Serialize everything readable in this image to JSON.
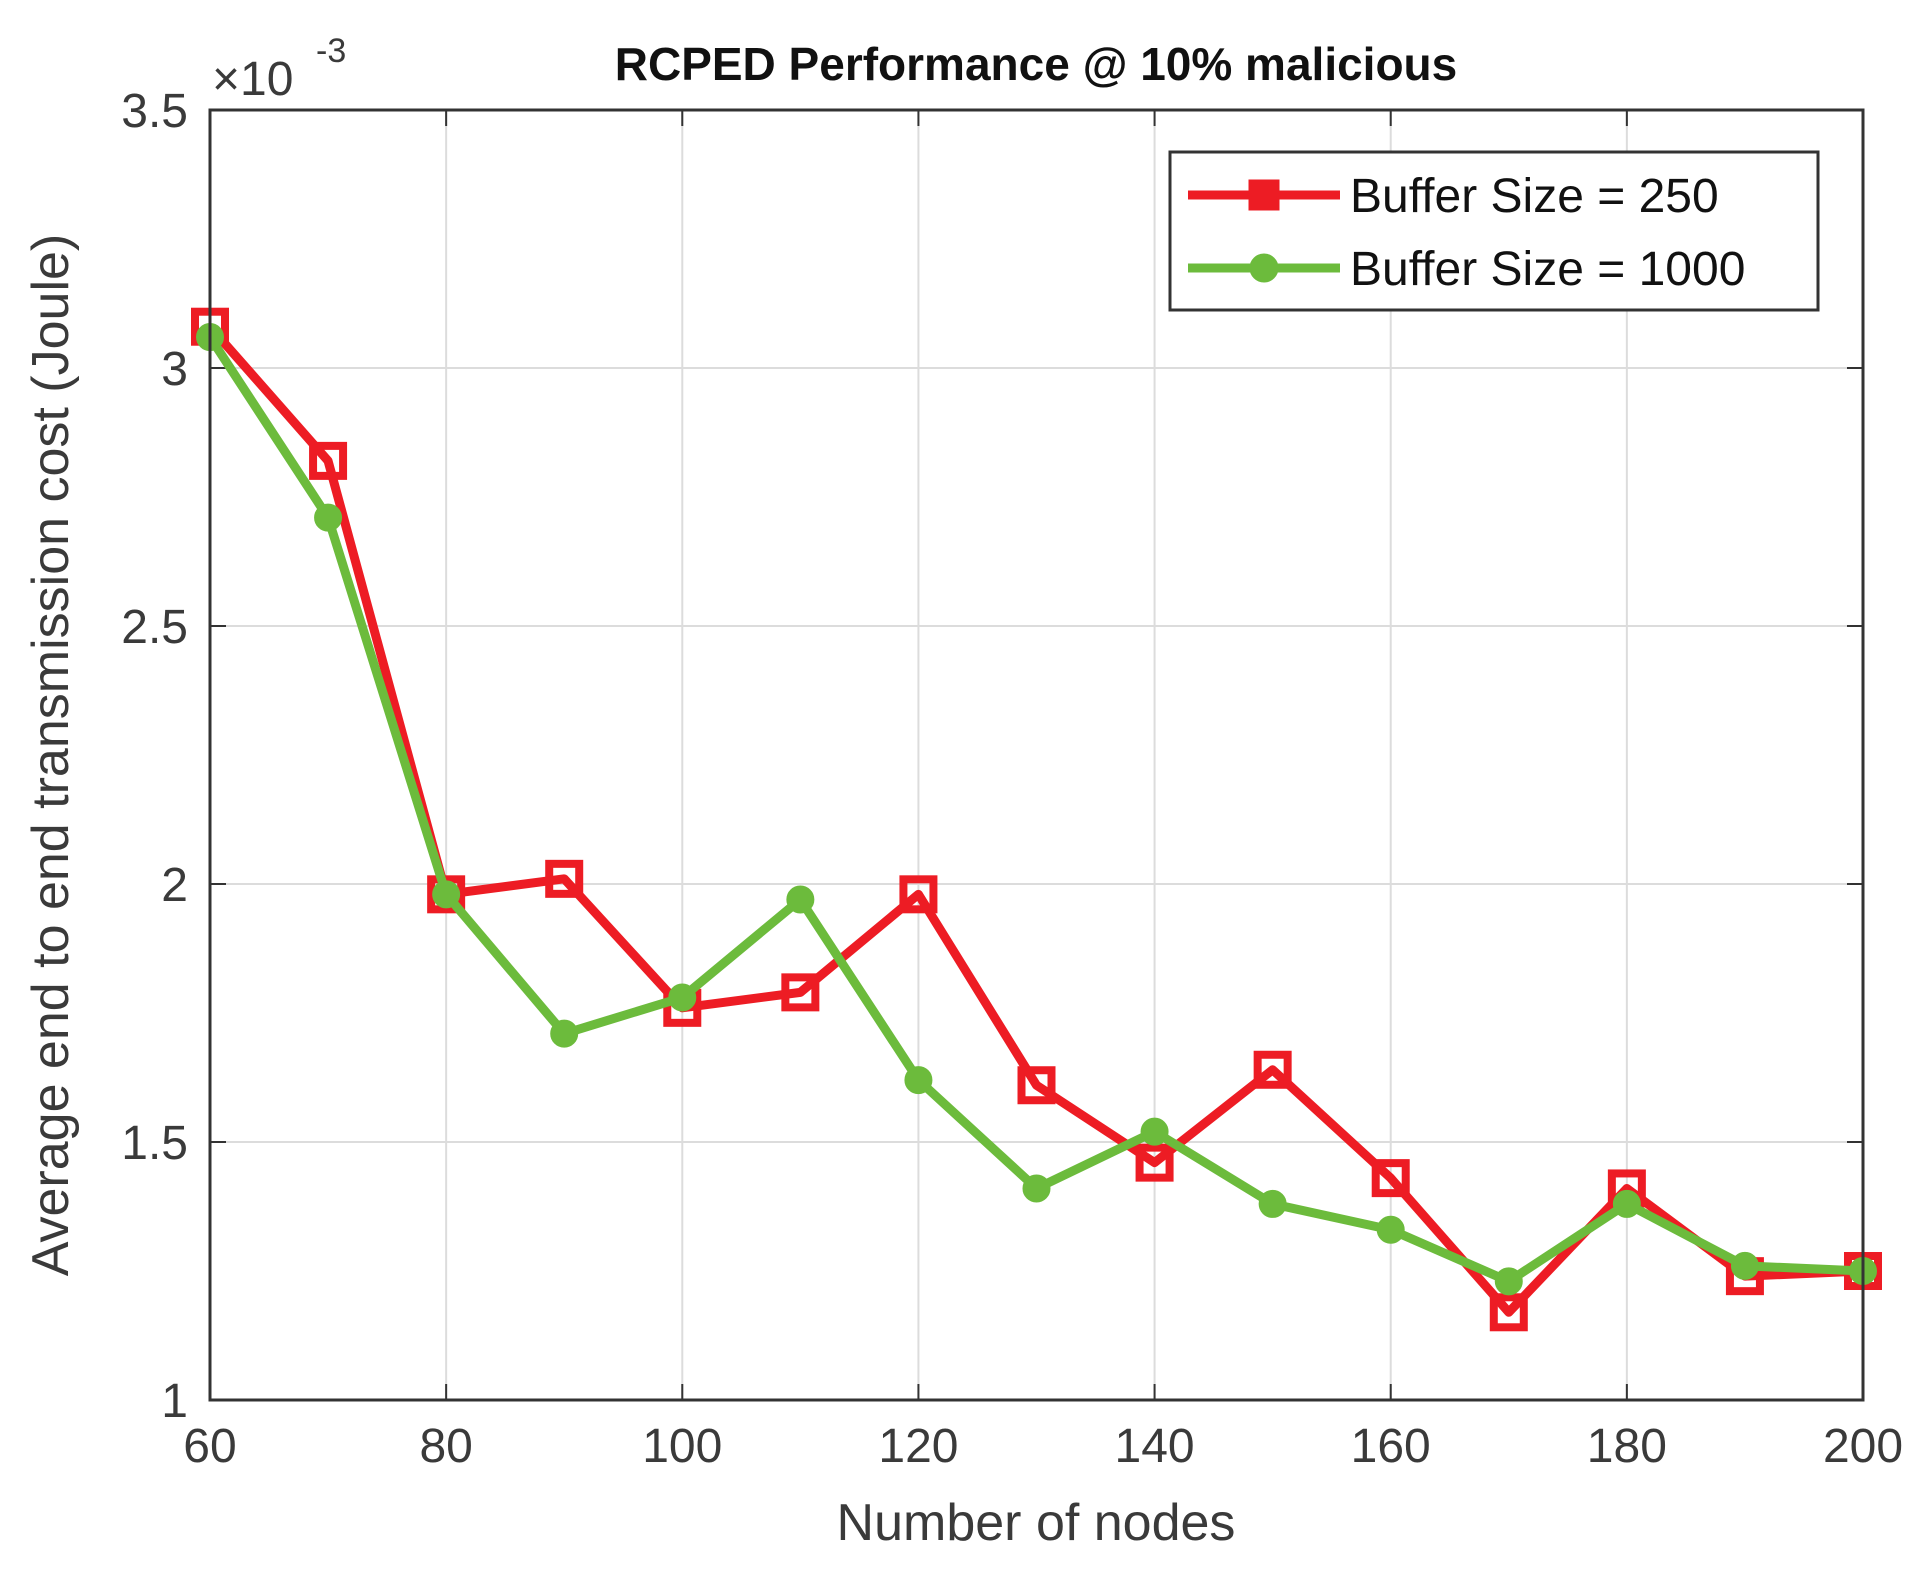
{
  "chart_data": {
    "type": "line",
    "title": "RCPED Performance @ 10% malicious",
    "xlabel": "Number of nodes",
    "ylabel": "Average end to end transmission cost (Joule)",
    "y_multiplier": {
      "base": "×10",
      "exponent": "-3"
    },
    "xlim": [
      60,
      200
    ],
    "ylim": [
      1,
      3.5
    ],
    "x_ticks": [
      60,
      80,
      100,
      120,
      140,
      160,
      180,
      200
    ],
    "y_ticks": [
      1,
      1.5,
      2,
      2.5,
      3,
      3.5
    ],
    "x_tick_labels": [
      "60",
      "80",
      "100",
      "120",
      "140",
      "160",
      "180",
      "200"
    ],
    "y_tick_labels": [
      "1",
      "1.5",
      "2",
      "2.5",
      "3",
      "3.5"
    ],
    "grid": true,
    "legend_position": "top-right",
    "x": [
      60,
      70,
      80,
      90,
      100,
      110,
      120,
      130,
      140,
      150,
      160,
      170,
      180,
      190,
      200
    ],
    "series": [
      {
        "name": "Buffer Size = 250",
        "color": "#ed1c24",
        "marker": "square",
        "values": [
          3.08,
          2.82,
          1.98,
          2.01,
          1.76,
          1.79,
          1.98,
          1.61,
          1.46,
          1.64,
          1.43,
          1.17,
          1.41,
          1.24,
          1.25
        ]
      },
      {
        "name": "Buffer Size = 1000",
        "color": "#6cbb3c",
        "marker": "circle",
        "values": [
          3.06,
          2.71,
          1.98,
          1.71,
          1.78,
          1.97,
          1.62,
          1.41,
          1.52,
          1.38,
          1.33,
          1.23,
          1.38,
          1.26,
          1.25
        ]
      }
    ]
  }
}
